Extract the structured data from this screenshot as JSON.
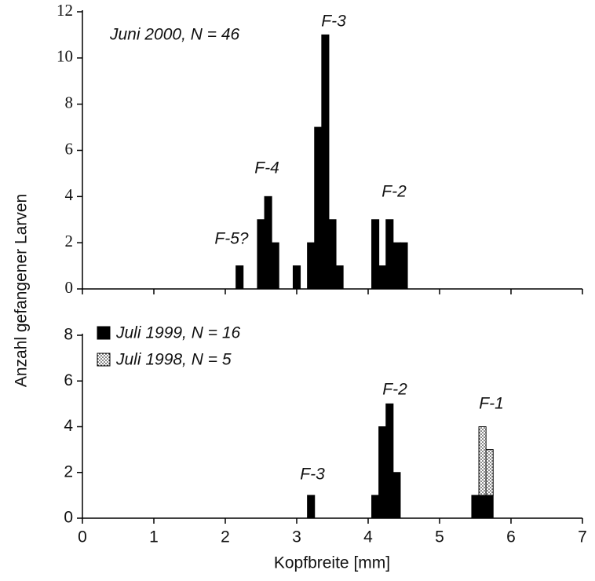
{
  "y_label": "Anzahl gefangener Larven",
  "x_label": "Kopfbreite [mm]",
  "chart_data": [
    {
      "type": "histogram",
      "stacked": true,
      "show_xtick_labels": false,
      "annotations": [
        "Juni 2000, N = 46",
        "F-3",
        "F-4",
        "F-5?",
        "F-2"
      ],
      "bins": [
        2.15,
        2.25,
        2.35,
        2.45,
        2.55,
        2.65,
        2.75,
        2.85,
        2.95,
        3.05,
        3.15,
        3.25,
        3.35,
        3.45,
        3.55,
        3.65,
        3.75,
        3.85,
        3.95,
        4.05,
        4.15,
        4.25,
        4.35,
        4.45,
        4.55
      ],
      "series": [
        {
          "name": "Juni 2000",
          "color": "#000000",
          "values": [
            1,
            0,
            0,
            3,
            4,
            2,
            0,
            0,
            1,
            0,
            2,
            7,
            11,
            3,
            1,
            0,
            0,
            0,
            0,
            3,
            1,
            3,
            2,
            2
          ]
        }
      ],
      "xlim": [
        0,
        7
      ],
      "xticks": [
        0,
        1,
        2,
        3,
        4,
        5,
        6,
        7
      ],
      "ylim": [
        0,
        12
      ],
      "yticks": [
        0,
        2,
        4,
        6,
        8,
        10,
        12
      ]
    },
    {
      "type": "histogram",
      "stacked": true,
      "show_xtick_labels": true,
      "annotations": [
        "F-3",
        "F-2",
        "F-1"
      ],
      "bins": [
        3.15,
        3.25,
        3.35,
        3.45,
        3.55,
        3.65,
        3.75,
        3.85,
        3.95,
        4.05,
        4.15,
        4.25,
        4.35,
        4.45,
        4.55,
        4.65,
        4.75,
        4.85,
        4.95,
        5.05,
        5.15,
        5.25,
        5.35,
        5.45,
        5.55,
        5.65,
        5.75
      ],
      "series": [
        {
          "name": "Juli 1999, N = 16",
          "color": "#000000",
          "values": [
            1,
            0,
            0,
            0,
            0,
            0,
            0,
            0,
            0,
            1,
            4,
            5,
            2,
            0,
            0,
            0,
            0,
            0,
            0,
            0,
            0,
            0,
            0,
            1,
            1,
            1
          ]
        },
        {
          "name": "Juli 1998, N = 5",
          "color": "#ffffff",
          "pattern": "dots",
          "values": [
            0,
            0,
            0,
            0,
            0,
            0,
            0,
            0,
            0,
            0,
            0,
            0,
            0,
            0,
            0,
            0,
            0,
            0,
            0,
            0,
            0,
            0,
            0,
            0,
            3,
            2
          ]
        }
      ],
      "legend": "upper left",
      "xlim": [
        0,
        7
      ],
      "xticks": [
        0,
        1,
        2,
        3,
        4,
        5,
        6,
        7
      ],
      "ylim": [
        0,
        8
      ],
      "yticks": [
        0,
        2,
        4,
        6,
        8
      ]
    }
  ]
}
